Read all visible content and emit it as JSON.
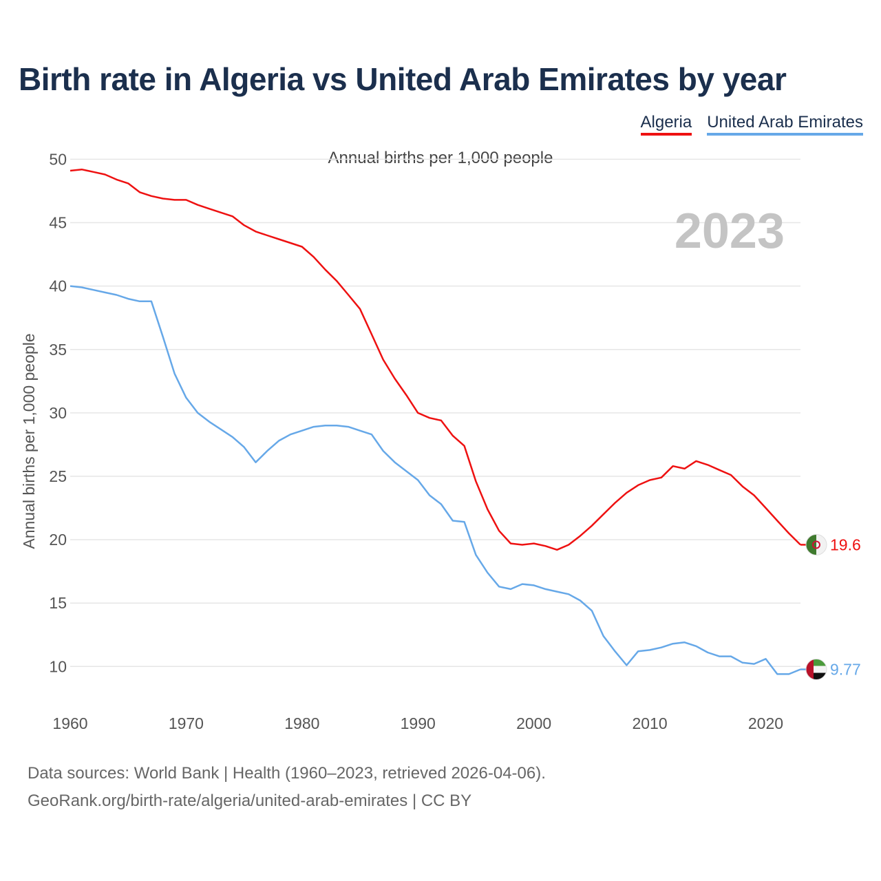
{
  "header": {
    "title": "Birth rate in Algeria vs United Arab Emirates by year",
    "subtitle": "Annual births per 1,000 people"
  },
  "legend": [
    {
      "label": "Algeria",
      "color": "#ee1111"
    },
    {
      "label": "United Arab Emirates",
      "color": "#66a8e8"
    }
  ],
  "footer": {
    "sources": "Data sources: World Bank | Health (1960–2023, retrieved 2026-04-06).",
    "credit": "GeoRank.org/birth-rate/algeria/united-arab-emirates | CC BY"
  },
  "chart_data": {
    "type": "line",
    "title": "Birth rate in Algeria vs United Arab Emirates by year",
    "ylabel": "Annual births per 1,000 people",
    "xlabel": "",
    "year_label": "2023",
    "xlim": [
      1960,
      2023
    ],
    "ylim": [
      6,
      51
    ],
    "x_ticks": [
      1960,
      1970,
      1980,
      1990,
      2000,
      2010,
      2020
    ],
    "y_ticks": [
      10,
      15,
      20,
      25,
      30,
      35,
      40,
      45,
      50
    ],
    "grid": true,
    "legend_position": "top-right",
    "x": [
      1960,
      1961,
      1962,
      1963,
      1964,
      1965,
      1966,
      1967,
      1968,
      1969,
      1970,
      1971,
      1972,
      1973,
      1974,
      1975,
      1976,
      1977,
      1978,
      1979,
      1980,
      1981,
      1982,
      1983,
      1984,
      1985,
      1986,
      1987,
      1988,
      1989,
      1990,
      1991,
      1992,
      1993,
      1994,
      1995,
      1996,
      1997,
      1998,
      1999,
      2000,
      2001,
      2002,
      2003,
      2004,
      2005,
      2006,
      2007,
      2008,
      2009,
      2010,
      2011,
      2012,
      2013,
      2014,
      2015,
      2016,
      2017,
      2018,
      2019,
      2020,
      2021,
      2022,
      2023
    ],
    "series": [
      {
        "name": "Algeria",
        "color": "#ee1111",
        "end_label": "19.6",
        "values": [
          49.1,
          49.2,
          49.0,
          48.8,
          48.4,
          48.1,
          47.4,
          47.1,
          46.9,
          46.8,
          46.8,
          46.4,
          46.1,
          45.8,
          45.5,
          44.8,
          44.3,
          44.0,
          43.7,
          43.4,
          43.1,
          42.3,
          41.3,
          40.4,
          39.3,
          38.2,
          36.2,
          34.2,
          32.7,
          31.4,
          30.0,
          29.6,
          29.4,
          28.2,
          27.4,
          24.6,
          22.4,
          20.7,
          19.7,
          19.6,
          19.7,
          19.5,
          19.2,
          19.6,
          20.3,
          21.1,
          22.0,
          22.9,
          23.7,
          24.3,
          24.7,
          24.9,
          25.8,
          25.6,
          26.2,
          25.9,
          25.5,
          25.1,
          24.2,
          23.5,
          22.5,
          21.5,
          20.5,
          19.6
        ]
      },
      {
        "name": "United Arab Emirates",
        "color": "#66a8e8",
        "end_label": "9.77",
        "values": [
          40.0,
          39.9,
          39.7,
          39.5,
          39.3,
          39.0,
          38.8,
          38.8,
          36.0,
          33.1,
          31.2,
          30.0,
          29.3,
          28.7,
          28.1,
          27.3,
          26.1,
          27.0,
          27.8,
          28.3,
          28.6,
          28.9,
          29.0,
          29.0,
          28.9,
          28.6,
          28.3,
          27.0,
          26.1,
          25.4,
          24.7,
          23.5,
          22.8,
          21.5,
          21.4,
          18.8,
          17.4,
          16.3,
          16.1,
          16.5,
          16.4,
          16.1,
          15.9,
          15.7,
          15.2,
          14.4,
          12.4,
          11.2,
          10.1,
          11.2,
          11.3,
          11.5,
          11.8,
          11.9,
          11.6,
          11.1,
          10.8,
          10.8,
          10.3,
          10.2,
          10.6,
          9.4,
          9.4,
          9.77
        ]
      }
    ]
  }
}
